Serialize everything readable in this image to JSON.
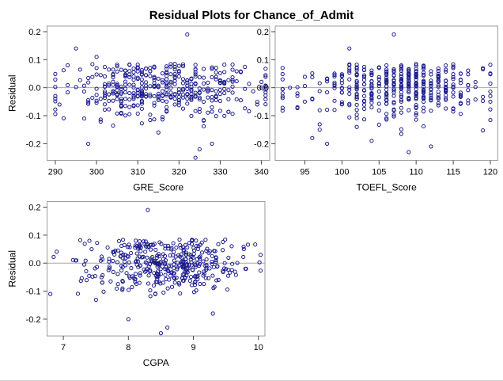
{
  "title": "Residual Plots for Chance_of_Admit",
  "colors": {
    "marker": "#1a1a8c",
    "frame": "#9a9a9a",
    "reference_line": "#a8a8a8"
  },
  "chart_data": [
    {
      "type": "scatter",
      "xlabel": "GRE_Score",
      "ylabel": "Residual",
      "xlim": [
        288,
        342
      ],
      "ylim": [
        -0.26,
        0.22
      ],
      "xticks": [
        290,
        300,
        310,
        320,
        330,
        340
      ],
      "yticks": [
        0.2,
        0.1,
        0.0,
        -0.1,
        -0.2
      ],
      "reference_line_y": 0.0,
      "seed": 11,
      "n_points": 400,
      "x_center": 316.5,
      "x_spread": 11.3,
      "x": [
        290,
        291,
        295,
        297,
        298,
        300,
        322,
        324,
        325,
        328,
        339,
        340
      ],
      "y": [
        -0.03,
        -0.06,
        0.14,
        -0.11,
        -0.2,
        0.11,
        0.19,
        -0.25,
        -0.22,
        -0.2,
        -0.06,
        0.0
      ]
    },
    {
      "type": "scatter",
      "xlabel": "TOEFL_Score",
      "ylabel": "",
      "xlim": [
        91,
        121
      ],
      "ylim": [
        -0.26,
        0.22
      ],
      "xticks": [
        95,
        100,
        105,
        110,
        115,
        120
      ],
      "yticks": [
        0.2,
        0.1,
        0.0,
        -0.1,
        -0.2
      ],
      "reference_line_y": 0.0,
      "seed": 23,
      "n_points": 400,
      "x_center": 107.4,
      "x_spread": 6.1,
      "x": [
        92,
        93,
        94,
        96,
        97,
        98,
        101,
        104,
        107,
        109,
        112,
        118,
        120
      ],
      "y": [
        -0.02,
        0.0,
        -0.07,
        -0.18,
        -0.15,
        -0.2,
        0.14,
        -0.19,
        0.19,
        -0.23,
        -0.21,
        0.02,
        -0.05
      ]
    },
    {
      "type": "scatter",
      "xlabel": "CGPA",
      "ylabel": "Residual",
      "xlim": [
        6.75,
        10.1
      ],
      "ylim": [
        -0.26,
        0.22
      ],
      "xticks": [
        7,
        8,
        9,
        10
      ],
      "yticks": [
        0.2,
        0.1,
        0.0,
        -0.1,
        -0.2
      ],
      "reference_line_y": 0.0,
      "seed": 37,
      "n_points": 400,
      "x_center": 8.58,
      "x_spread": 0.6,
      "x": [
        6.8,
        7.2,
        7.4,
        7.6,
        8.0,
        8.3,
        8.5,
        8.6,
        9.3,
        9.8
      ],
      "y": [
        -0.11,
        0.01,
        0.08,
        -0.07,
        -0.2,
        0.19,
        -0.25,
        -0.23,
        -0.18,
        -0.02
      ]
    }
  ]
}
